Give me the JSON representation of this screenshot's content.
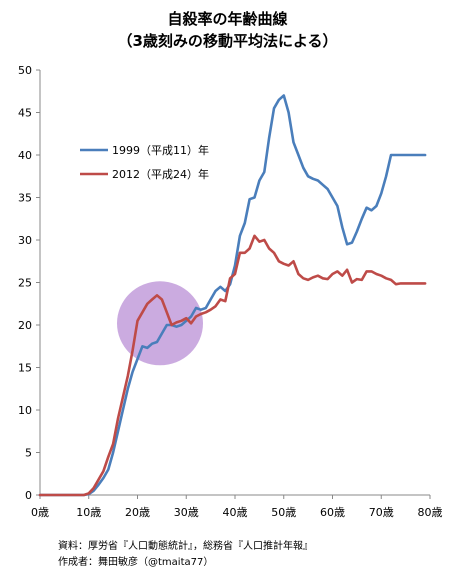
{
  "chart_data": {
    "type": "line",
    "title": "自殺率の年齢曲線",
    "subtitle": "（3歳刻みの移動平均法による）",
    "xlabel": "",
    "ylabel": "",
    "xlim": [
      0,
      80
    ],
    "ylim": [
      0,
      50
    ],
    "x_ticks": [
      0,
      10,
      20,
      30,
      40,
      50,
      60,
      70,
      80
    ],
    "x_tick_labels": [
      "0歳",
      "10歳",
      "20歳",
      "30歳",
      "40歳",
      "50歳",
      "60歳",
      "70歳",
      "80歳"
    ],
    "y_ticks": [
      0,
      5,
      10,
      15,
      20,
      25,
      30,
      35,
      40,
      45,
      50
    ],
    "y_tick_labels": [
      "0",
      "5",
      "10",
      "15",
      "20",
      "25",
      "30",
      "35",
      "40",
      "45",
      "50"
    ],
    "grid": false,
    "legend_position": "upper-left",
    "series": [
      {
        "name": "1999（平成11）年",
        "color": "#4a7ebb",
        "x": [
          0,
          1,
          2,
          3,
          4,
          5,
          6,
          7,
          8,
          9,
          10,
          11,
          12,
          13,
          14,
          15,
          16,
          17,
          18,
          19,
          20,
          21,
          22,
          23,
          24,
          25,
          26,
          27,
          28,
          29,
          30,
          31,
          32,
          33,
          34,
          35,
          36,
          37,
          38,
          39,
          40,
          41,
          42,
          43,
          44,
          45,
          46,
          47,
          48,
          49,
          50,
          51,
          52,
          53,
          54,
          55,
          56,
          57,
          58,
          59,
          60,
          61,
          62,
          63,
          64,
          65,
          66,
          67,
          68,
          69,
          70,
          71,
          72,
          73,
          74,
          75,
          76,
          77,
          78,
          79
        ],
        "values": [
          0,
          0,
          0,
          0,
          0,
          0,
          0,
          0,
          0,
          0,
          0.1,
          0.5,
          1.2,
          2,
          3,
          5,
          7.5,
          10,
          12.5,
          14.5,
          16,
          17.5,
          17.3,
          17.8,
          18,
          19,
          20,
          20,
          19.8,
          20,
          20.5,
          21,
          22,
          21.8,
          22,
          23,
          24,
          24.5,
          24,
          24.8,
          27,
          30.5,
          32,
          34.8,
          35,
          37,
          38,
          42,
          45.5,
          46.5,
          47,
          45,
          41.5,
          40,
          38.5,
          37.5,
          37.2,
          37,
          36.5,
          36,
          35,
          34,
          31.5,
          29.5,
          29.7,
          31,
          32.5,
          33.8,
          33.5,
          34,
          35.5,
          37.5,
          40,
          40,
          40,
          40,
          40,
          40,
          40,
          40
        ],
        "x_used_max": 79
      },
      {
        "name": "2012（平成24）年",
        "color": "#be4b48",
        "x": [
          0,
          1,
          2,
          3,
          4,
          5,
          6,
          7,
          8,
          9,
          10,
          11,
          12,
          13,
          14,
          15,
          16,
          17,
          18,
          19,
          20,
          21,
          22,
          23,
          24,
          25,
          26,
          27,
          28,
          29,
          30,
          31,
          32,
          33,
          34,
          35,
          36,
          37,
          38,
          39,
          40,
          41,
          42,
          43,
          44,
          45,
          46,
          47,
          48,
          49,
          50,
          51,
          52,
          53,
          54,
          55,
          56,
          57,
          58,
          59,
          60,
          61,
          62,
          63,
          64,
          65,
          66,
          67,
          68,
          69,
          70,
          71,
          72,
          73,
          74,
          75,
          76,
          77,
          78,
          79
        ],
        "values": [
          0,
          0,
          0,
          0,
          0,
          0,
          0,
          0,
          0,
          0,
          0.2,
          0.8,
          1.8,
          2.8,
          4.5,
          6,
          9,
          11.5,
          14,
          17,
          20.5,
          21.5,
          22.5,
          23,
          23.5,
          23,
          21.5,
          20,
          20.3,
          20.5,
          20.8,
          20.2,
          21,
          21.3,
          21.5,
          21.8,
          22.2,
          23,
          22.8,
          25.5,
          26,
          28.5,
          28.5,
          29,
          30.5,
          29.8,
          30,
          29,
          28.5,
          27.5,
          27.2,
          27,
          27.5,
          26,
          25.5,
          25.3,
          25.6,
          25.8,
          25.5,
          25.4,
          26,
          26.3,
          25.8,
          26.5,
          25,
          25.4,
          25.3,
          26.3,
          26.3,
          26,
          25.8,
          25.5,
          25.3,
          24.8,
          24.9,
          24.9,
          24.9,
          24.9,
          24.9,
          24.9
        ],
        "x_used_max": 79
      }
    ],
    "annotations": [
      {
        "type": "highlight-circle",
        "center": [
          24,
          20.2
        ],
        "color": "#b98fd6"
      }
    ]
  },
  "source_line": "資料：厚労省『人口動態統計』，総務省『人口推計年報』",
  "author_line": "作成者：舞田敏彦（@tmaita77）"
}
